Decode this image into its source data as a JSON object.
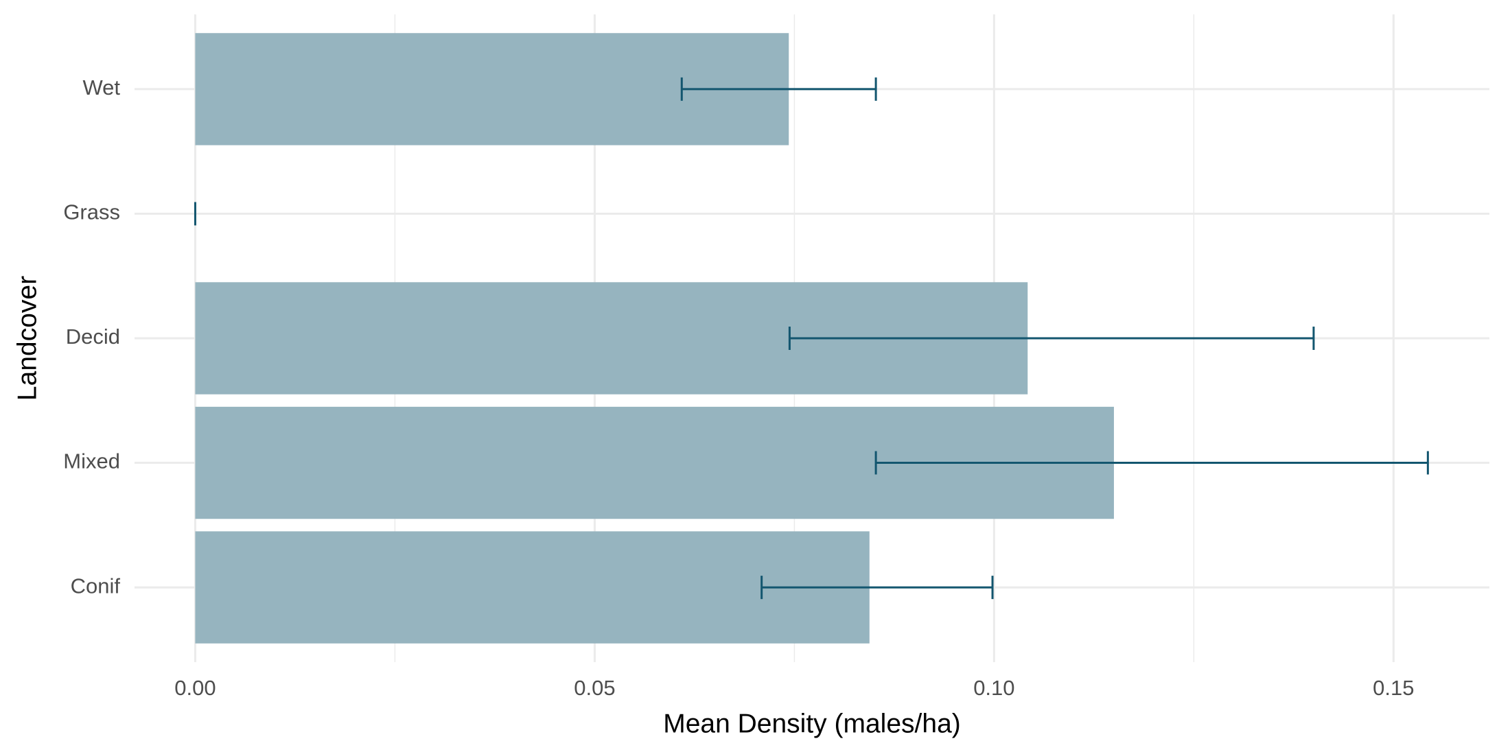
{
  "chart_data": {
    "type": "bar",
    "orientation": "horizontal",
    "categories": [
      "Conif",
      "Mixed",
      "Decid",
      "Grass",
      "Wet"
    ],
    "values": [
      0.0844,
      0.115,
      0.1042,
      0,
      0.0743
    ],
    "ci_lower": [
      0.0709,
      0.0852,
      0.0744,
      0,
      0.0609
    ],
    "ci_upper": [
      0.0998,
      0.1543,
      0.14,
      0,
      0.0852
    ],
    "color": "#96b4bf",
    "error_color": "#13566f",
    "xlabel": "Mean Density (males/ha)",
    "ylabel": "Landcover",
    "xlim": [
      -0.0076,
      0.162
    ],
    "xticks": [
      {
        "value": 0,
        "label": "0.00"
      },
      {
        "value": 0.05,
        "label": "0.05"
      },
      {
        "value": 0.1,
        "label": "0.10"
      },
      {
        "value": 0.15,
        "label": "0.15"
      }
    ],
    "minor_xticks": [
      0.025,
      0.075,
      0.125
    ],
    "grid": true
  }
}
